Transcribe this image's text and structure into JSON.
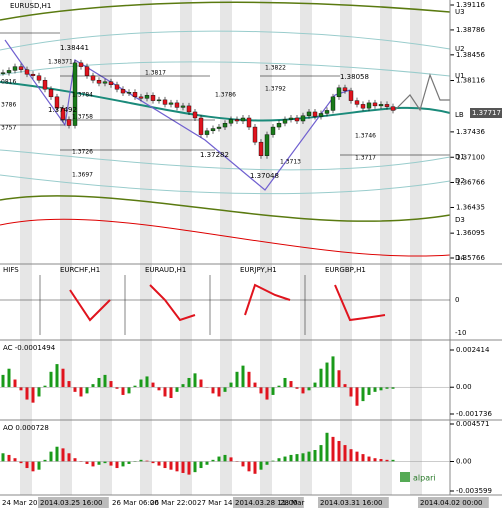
{
  "chart_data": [
    {
      "type": "candlestick",
      "title": "EURUSD,H1",
      "last_price": "1.37717",
      "color_up": "#1a7a1a",
      "color_down": "#e0141e",
      "values": [
        1.3822,
        1.3825,
        1.383,
        1.3826,
        1.382,
        1.3818,
        1.3812,
        1.38,
        1.379,
        1.3775,
        1.376,
        1.3752,
        1.3835,
        1.383,
        1.3818,
        1.3812,
        1.3808,
        1.381,
        1.3806,
        1.38,
        1.3795,
        1.3796,
        1.379,
        1.3788,
        1.3792,
        1.3785,
        1.3786,
        1.378,
        1.3782,
        1.3776,
        1.3778,
        1.377,
        1.3762,
        1.374,
        1.3745,
        1.3748,
        1.375,
        1.3755,
        1.376,
        1.3758,
        1.3762,
        1.375,
        1.373,
        1.3712,
        1.374,
        1.375,
        1.3755,
        1.376,
        1.3762,
        1.3758,
        1.3765,
        1.377,
        1.3764,
        1.3768,
        1.3772,
        1.379,
        1.3802,
        1.3798,
        1.3785,
        1.378,
        1.3775,
        1.3782,
        1.3778,
        1.378,
        1.3777,
        1.3772
      ],
      "ylim": [
        1.35766,
        1.39116
      ],
      "yticks": [
        1.39116,
        1.38786,
        1.38456,
        1.38116,
        1.37436,
        {
          "value": 1.371,
          "label": "1.37100"
        },
        1.36766,
        1.36435,
        1.36095,
        1.35766
      ],
      "levels": [
        "U3",
        "U2",
        "U1",
        "LB",
        "D1",
        "D2",
        "D3",
        "D4"
      ],
      "annotations": [
        "1.38441",
        "1.38371",
        "1.3817",
        "1.3822",
        "1.38058",
        "1.3784",
        "1.3786",
        "1.3792",
        "1.37492",
        "1.3758",
        "1.3726",
        "1.37282",
        "1.37048",
        "1.3713",
        "1.3746",
        "1.3717",
        "1.3697",
        "0816",
        "3786",
        "3757"
      ]
    },
    {
      "type": "histogram",
      "title": "AC -0.0001494",
      "color_up": "#1a9a1a",
      "color_down": "#e0141e",
      "values": [
        0.0008,
        0.0012,
        0.0005,
        -0.0002,
        -0.0008,
        -0.001,
        -0.0006,
        0.0001,
        0.001,
        0.0015,
        0.0012,
        0.0004,
        -0.0003,
        -0.0006,
        -0.0004,
        0.0002,
        0.0006,
        0.0008,
        0.0004,
        -0.0001,
        -0.0005,
        -0.0004,
        0.0001,
        0.0005,
        0.0007,
        0.0003,
        -0.0002,
        -0.0006,
        -0.0007,
        -0.0003,
        0.0002,
        0.0006,
        0.0009,
        0.0005,
        0,
        -0.0004,
        -0.0006,
        -0.0003,
        0.0003,
        0.001,
        0.0014,
        0.001,
        0.0003,
        -0.0004,
        -0.0008,
        -0.0005,
        0.0001,
        0.0006,
        0.0004,
        -0.0001,
        -0.0004,
        -0.0002,
        0.0003,
        0.0012,
        0.0016,
        0.002,
        0.0011,
        0.0002,
        -0.0006,
        -0.0012,
        -0.0009,
        -0.0005,
        -0.0003,
        -0.0002,
        -0.0001,
        -0.0001
      ],
      "ylim": [
        -0.001736,
        0.002414
      ],
      "yticks": [
        0.002414,
        {
          "value": 0,
          "label": "0.00"
        },
        -0.001736
      ]
    },
    {
      "type": "histogram",
      "title": "AO 0.000728",
      "color_up": "#1a9a1a",
      "color_down": "#e0141e",
      "values": [
        0.001,
        0.0008,
        0.0004,
        -0.0002,
        -0.0008,
        -0.0012,
        -0.001,
        0.0002,
        0.0012,
        0.0018,
        0.0016,
        0.001,
        0.0004,
        0,
        -0.0003,
        -0.0006,
        -0.0004,
        -0.0002,
        -0.0005,
        -0.0008,
        -0.0006,
        -0.0003,
        0,
        0.0002,
        0.0001,
        -0.0002,
        -0.0005,
        -0.0008,
        -0.001,
        -0.0012,
        -0.0014,
        -0.0016,
        -0.0013,
        -0.0008,
        -0.0004,
        0.0002,
        0.0006,
        0.0008,
        0.0005,
        0,
        -0.0006,
        -0.0012,
        -0.0015,
        -0.001,
        -0.0004,
        0.0001,
        0.0004,
        0.0006,
        0.0008,
        0.0009,
        0.001,
        0.0012,
        0.0014,
        0.002,
        0.0035,
        0.003,
        0.0025,
        0.002,
        0.0015,
        0.0012,
        0.0009,
        0.0006,
        0.0004,
        0.0003,
        0.0002,
        0.0002
      ],
      "ylim": [
        -0.003599,
        0.004571
      ],
      "yticks": [
        0.004571,
        {
          "value": 0,
          "label": "0.00"
        },
        -0.003599
      ]
    }
  ],
  "panel2": {
    "title": "HIFS",
    "labels": [
      "EURCHF,H1",
      "EURAUD,H1",
      "EURJPY,H1",
      "EURGBP,H1"
    ],
    "ticks": [
      "0",
      "-10"
    ]
  },
  "time_axis": [
    "24 Mar 20",
    "2014.03.25 16:00",
    "26 Mar 06:00",
    "26 Mar 22:00",
    "27 Mar 14:",
    "2014.03.28 11:00",
    "28 Mar",
    "2014.03.31 16:00",
    "2014.04.02 00:00"
  ],
  "logo": "alpari"
}
